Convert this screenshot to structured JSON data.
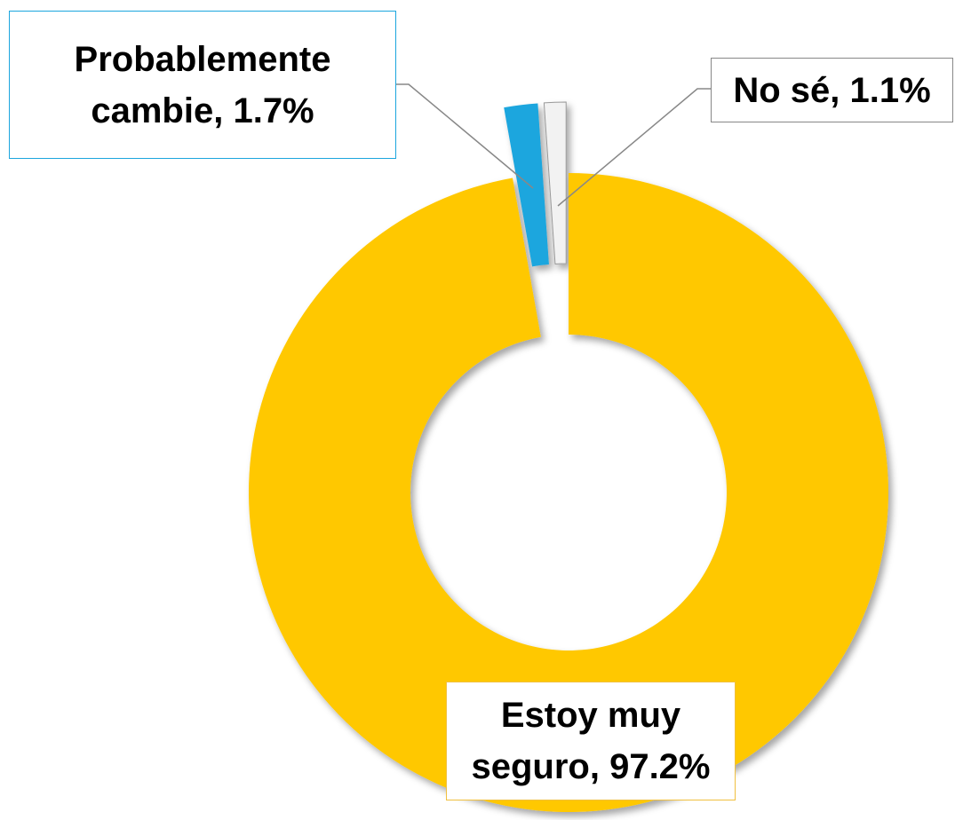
{
  "chart_data": {
    "type": "donut",
    "categories": [
      "Estoy muy seguro",
      "Probablemente cambie",
      "No sé"
    ],
    "values": [
      97.2,
      1.7,
      1.1
    ],
    "value_labels": [
      "97.2%",
      "1.7%",
      "1.1%"
    ],
    "colors": [
      "#FFC800",
      "#1CA6DE",
      "#F2F2F2"
    ]
  }
}
